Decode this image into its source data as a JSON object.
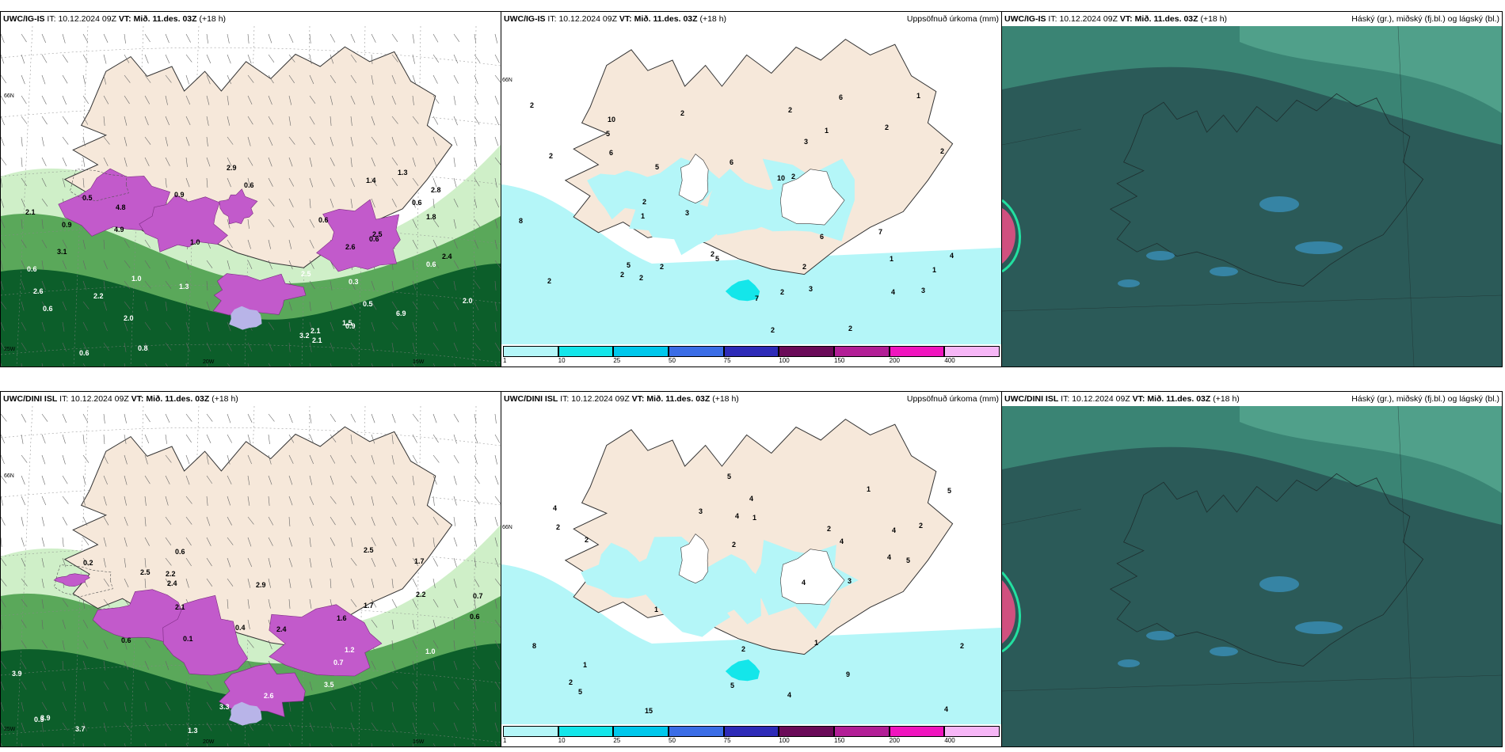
{
  "rows": [
    {
      "model": "UWC/IG-IS",
      "it_label": "IT:",
      "it_value": "10.12.2024 09Z",
      "vt_label": "VT:",
      "vt_value": "Mið. 11.des. 03Z",
      "lead": "(+18 h)"
    },
    {
      "model": "UWC/DINI ISL",
      "it_label": "IT:",
      "it_value": "10.12.2024 09Z",
      "vt_label": "VT:",
      "vt_value": "Mið. 11.des. 03Z",
      "lead": "(+18 h)"
    }
  ],
  "precip_title": "Uppsöfnuð úrkoma (mm)",
  "cloud_title": "Háský (gr.), miðský (fj.bl.) og lágský (bl.)",
  "axis_labels": {
    "lat66": "66N",
    "lon20": "20W",
    "lon15": "15W",
    "lon25": "25W"
  },
  "colorbar": {
    "ticks": [
      "1",
      "10",
      "25",
      "50",
      "75",
      "100",
      "150",
      "200",
      "400"
    ],
    "colors": [
      "#b4f6f8",
      "#14e6ea",
      "#00c8ec",
      "#3b6de6",
      "#2e2bb8",
      "#6a0a58",
      "#b21e96",
      "#f014be",
      "#f6b6f6"
    ]
  },
  "colors": {
    "land": "#f6e8da",
    "sea_precip": "#b4f6f8",
    "cloud_bg": "#2b5a58",
    "wind_green_dark": "#0c5e2a",
    "wind_green_mid": "#5aa85a",
    "wind_green_light": "#cfefc8",
    "snow_purple": "#c25acb"
  },
  "precip_labels_top": [
    "2",
    "5",
    "1",
    "3",
    "2",
    "1",
    "1",
    "2",
    "4",
    "2",
    "2",
    "2",
    "3",
    "2",
    "1",
    "2",
    "1",
    "2",
    "3",
    "2",
    "2",
    "2",
    "6",
    "8",
    "7",
    "3",
    "2",
    "5",
    "5",
    "6",
    "7",
    "10",
    "10",
    "6",
    "6",
    "5",
    "2",
    "2",
    "2",
    "4",
    "2"
  ],
  "precip_labels_bottom": [
    "2",
    "2",
    "1",
    "2",
    "1",
    "1",
    "3",
    "1",
    "3",
    "2",
    "4",
    "4",
    "4",
    "4",
    "4",
    "4",
    "2",
    "5",
    "5",
    "5",
    "5",
    "4",
    "4",
    "4",
    "15",
    "9",
    "5",
    "2",
    "1",
    "2",
    "2",
    "8"
  ],
  "wind_labels_top": [
    "0.3",
    "0.5",
    "0.5",
    "0.6",
    "0.9",
    "1.0",
    "0.8",
    "0.6",
    "1.4",
    "1.3",
    "0.6",
    "0.6",
    "0.9",
    "2.1",
    "2.6",
    "0.6",
    "0.6",
    "0.6",
    "2.6",
    "4.8",
    "6.9",
    "4.9",
    "3.2",
    "3.1",
    "2.9",
    "2.5",
    "2.8",
    "2.2",
    "2.1",
    "2.0",
    "2.5",
    "2.1",
    "2.4",
    "1.3",
    "1.0",
    "0.9",
    "2.0",
    "1.8",
    "1.5",
    "0.6"
  ],
  "wind_labels_bottom": [
    "0.5",
    "1.3",
    "0.6",
    "0.2",
    "2.2",
    "2.9",
    "0.7",
    "2.1",
    "1.6",
    "2.4",
    "0.6",
    "1.0",
    "0.7",
    "3.9",
    "3.5",
    "2.6",
    "3.3",
    "3.9",
    "3.7",
    "2.5",
    "1.7",
    "2.5",
    "2.4",
    "2.2",
    "1.7",
    "0.6",
    "0.4",
    "0.1",
    "1.2"
  ]
}
